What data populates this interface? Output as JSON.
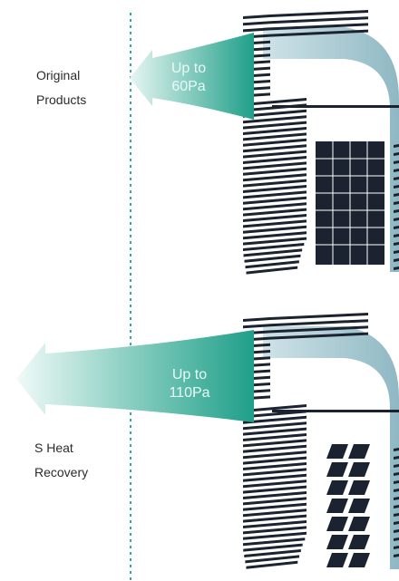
{
  "rows": [
    {
      "label_lines": [
        "Original",
        "Products"
      ],
      "arrow_text": [
        "Up to",
        "60Pa"
      ]
    },
    {
      "label_lines": [
        "S Heat",
        "Recovery"
      ],
      "arrow_text": [
        "Up to",
        "110Pa"
      ]
    }
  ],
  "colors": {
    "arrow_start": "#d9f1ec",
    "arrow_end": "#25a58f",
    "louver": "#1b2330",
    "duct": "#9fc3cc",
    "divider": "#35a8a6"
  }
}
